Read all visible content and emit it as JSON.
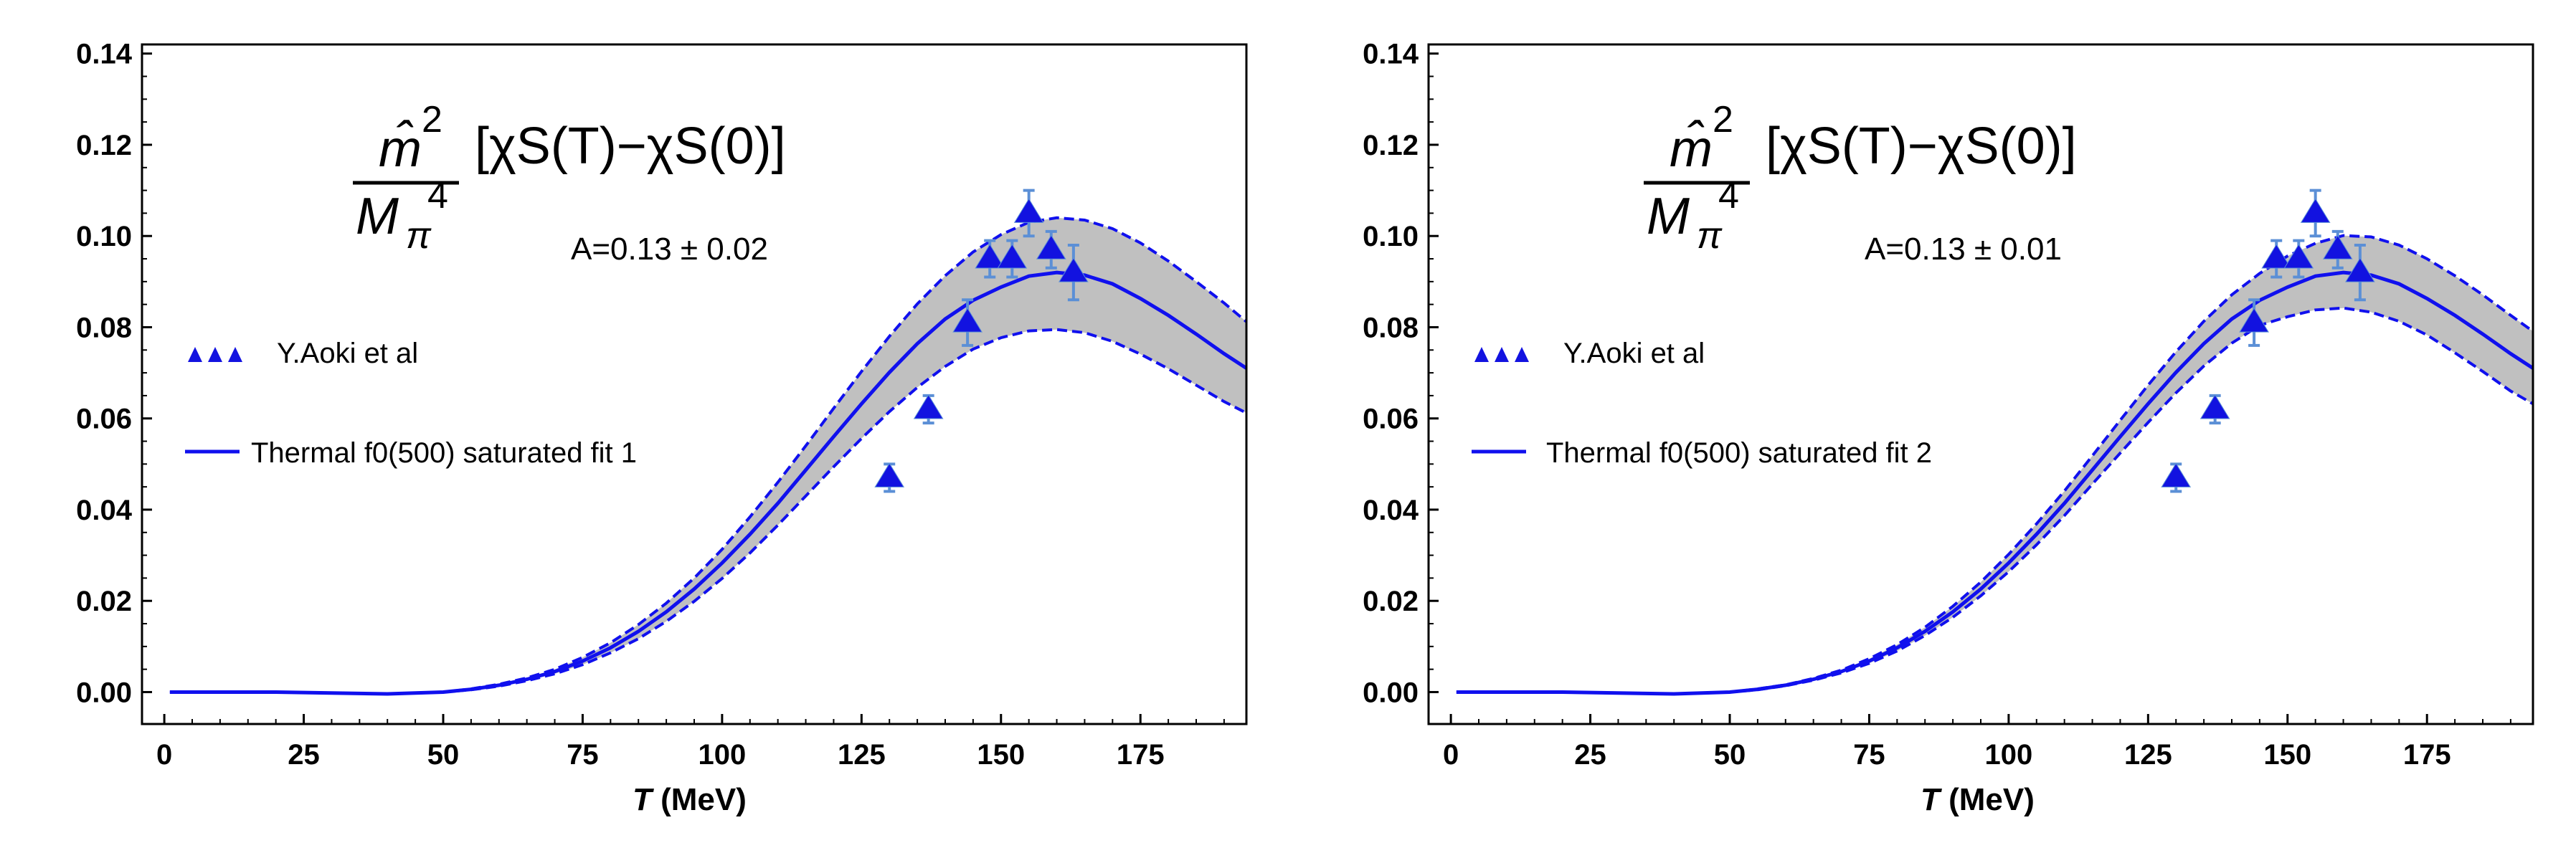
{
  "chart_data": [
    {
      "type": "line",
      "panel": "left",
      "formula": {
        "numerator": "m̂",
        "numerator_sup": "2",
        "denominator": "M",
        "denominator_sub": "π",
        "denominator_sup": "4",
        "bracket_expr": "[χS(T)−χS(0)]"
      },
      "annotation": "A=0.13 ± 0.02",
      "xlabel": "T (MeV)",
      "xlabel_var": "T",
      "xlabel_unit": "(MeV)",
      "xlim": [
        -4,
        194
      ],
      "ylim": [
        -0.007,
        0.142
      ],
      "xticks": [
        0,
        25,
        50,
        75,
        100,
        125,
        150,
        175
      ],
      "yticks": [
        "0.00",
        "0.02",
        "0.04",
        "0.06",
        "0.08",
        "0.10",
        "0.12",
        "0.14"
      ],
      "legend": [
        "Y.Aoki et al",
        "Thermal f0(500) saturated fit 1"
      ],
      "legend_position": "left",
      "data_points": {
        "name": "Y.Aoki et al",
        "x": [
          130,
          137,
          144,
          148,
          152,
          155,
          159,
          163
        ],
        "y": [
          0.047,
          0.062,
          0.081,
          0.095,
          0.095,
          0.105,
          0.097,
          0.092
        ],
        "err": [
          0.003,
          0.003,
          0.005,
          0.004,
          0.004,
          0.005,
          0.004,
          0.006
        ]
      },
      "curve": {
        "x": [
          1,
          10,
          20,
          30,
          40,
          50,
          55,
          60,
          65,
          70,
          75,
          80,
          85,
          90,
          95,
          100,
          105,
          110,
          115,
          120,
          125,
          130,
          135,
          140,
          145,
          150,
          155,
          160,
          165,
          170,
          175,
          180,
          185,
          190,
          194
        ],
        "y": [
          0.0,
          0.0,
          0.0,
          -0.0002,
          -0.0004,
          0.0,
          0.0006,
          0.0015,
          0.0028,
          0.0045,
          0.0068,
          0.0097,
          0.0133,
          0.0176,
          0.0226,
          0.0283,
          0.0346,
          0.0414,
          0.0487,
          0.056,
          0.0632,
          0.0701,
          0.0764,
          0.0818,
          0.0859,
          0.0888,
          0.0912,
          0.092,
          0.0914,
          0.0895,
          0.0863,
          0.0826,
          0.0785,
          0.0742,
          0.071
        ],
        "upper": [
          0.0,
          0.0,
          0.0,
          -0.0002,
          -0.0004,
          0.0,
          0.0007,
          0.0017,
          0.0031,
          0.005,
          0.0076,
          0.0108,
          0.0148,
          0.0195,
          0.025,
          0.0313,
          0.0384,
          0.046,
          0.054,
          0.0622,
          0.0703,
          0.078,
          0.0851,
          0.0913,
          0.0965,
          0.1003,
          0.103,
          0.104,
          0.1035,
          0.1016,
          0.0985,
          0.0945,
          0.09,
          0.0853,
          0.0812
        ],
        "lower": [
          0.0,
          0.0,
          0.0,
          -0.0002,
          -0.0004,
          0.0,
          0.0005,
          0.0013,
          0.0025,
          0.004,
          0.006,
          0.0086,
          0.0117,
          0.0155,
          0.0199,
          0.0249,
          0.0305,
          0.0366,
          0.043,
          0.0494,
          0.0556,
          0.0615,
          0.0668,
          0.0714,
          0.0752,
          0.0777,
          0.0792,
          0.0795,
          0.0788,
          0.0769,
          0.0741,
          0.0709,
          0.0673,
          0.0637,
          0.0612
        ]
      }
    },
    {
      "type": "line",
      "panel": "right",
      "formula": {
        "numerator": "m̂",
        "numerator_sup": "2",
        "denominator": "M",
        "denominator_sub": "π",
        "denominator_sup": "4",
        "bracket_expr": "[χS(T)−χS(0)]"
      },
      "annotation": "A=0.13 ± 0.01",
      "xlabel": "T (MeV)",
      "xlabel_var": "T",
      "xlabel_unit": "(MeV)",
      "xlim": [
        -4,
        194
      ],
      "ylim": [
        -0.007,
        0.142
      ],
      "xticks": [
        0,
        25,
        50,
        75,
        100,
        125,
        150,
        175
      ],
      "yticks": [
        "0.00",
        "0.02",
        "0.04",
        "0.06",
        "0.08",
        "0.10",
        "0.12",
        "0.14"
      ],
      "legend": [
        "Y.Aoki et al",
        "Thermal f0(500) saturated fit 2"
      ],
      "legend_position": "left",
      "data_points": {
        "name": "Y.Aoki et al",
        "x": [
          130,
          137,
          144,
          148,
          152,
          155,
          159,
          163
        ],
        "y": [
          0.047,
          0.062,
          0.081,
          0.095,
          0.095,
          0.105,
          0.097,
          0.092
        ],
        "err": [
          0.003,
          0.003,
          0.005,
          0.004,
          0.004,
          0.005,
          0.004,
          0.006
        ]
      },
      "curve": {
        "x": [
          1,
          10,
          20,
          30,
          40,
          50,
          55,
          60,
          65,
          70,
          75,
          80,
          85,
          90,
          95,
          100,
          105,
          110,
          115,
          120,
          125,
          130,
          135,
          140,
          145,
          150,
          155,
          160,
          165,
          170,
          175,
          180,
          185,
          190,
          194
        ],
        "y": [
          0.0,
          0.0,
          0.0,
          -0.0002,
          -0.0004,
          0.0,
          0.0006,
          0.0015,
          0.0028,
          0.0045,
          0.0068,
          0.0097,
          0.0133,
          0.0176,
          0.0226,
          0.0283,
          0.0346,
          0.0414,
          0.0487,
          0.056,
          0.0632,
          0.0701,
          0.0764,
          0.0818,
          0.0859,
          0.0888,
          0.0912,
          0.092,
          0.0914,
          0.0895,
          0.0863,
          0.0826,
          0.0785,
          0.0742,
          0.071
        ],
        "upper": [
          0.0,
          0.0,
          0.0,
          -0.0002,
          -0.0004,
          0.0,
          0.0007,
          0.0016,
          0.003,
          0.0048,
          0.0073,
          0.0104,
          0.0142,
          0.0188,
          0.0241,
          0.0302,
          0.0369,
          0.0441,
          0.0518,
          0.0596,
          0.0673,
          0.0746,
          0.0813,
          0.0871,
          0.0918,
          0.0956,
          0.0984,
          0.1001,
          0.0998,
          0.098,
          0.095,
          0.0913,
          0.0871,
          0.0826,
          0.0791
        ],
        "lower": [
          0.0,
          0.0,
          0.0,
          -0.0002,
          -0.0004,
          0.0,
          0.0005,
          0.0014,
          0.0026,
          0.0042,
          0.0063,
          0.009,
          0.0124,
          0.0164,
          0.0211,
          0.0264,
          0.0323,
          0.0387,
          0.0456,
          0.0524,
          0.0591,
          0.0656,
          0.0715,
          0.0765,
          0.0804,
          0.0823,
          0.0838,
          0.0842,
          0.0833,
          0.0813,
          0.0783,
          0.0744,
          0.0703,
          0.066,
          0.0632
        ]
      }
    }
  ],
  "colors": {
    "curve": "#1010ee",
    "band_fill": "#c0c0c0",
    "marker": "#1212e0",
    "error_bar": "#5b8fd6",
    "axis": "#000000"
  }
}
